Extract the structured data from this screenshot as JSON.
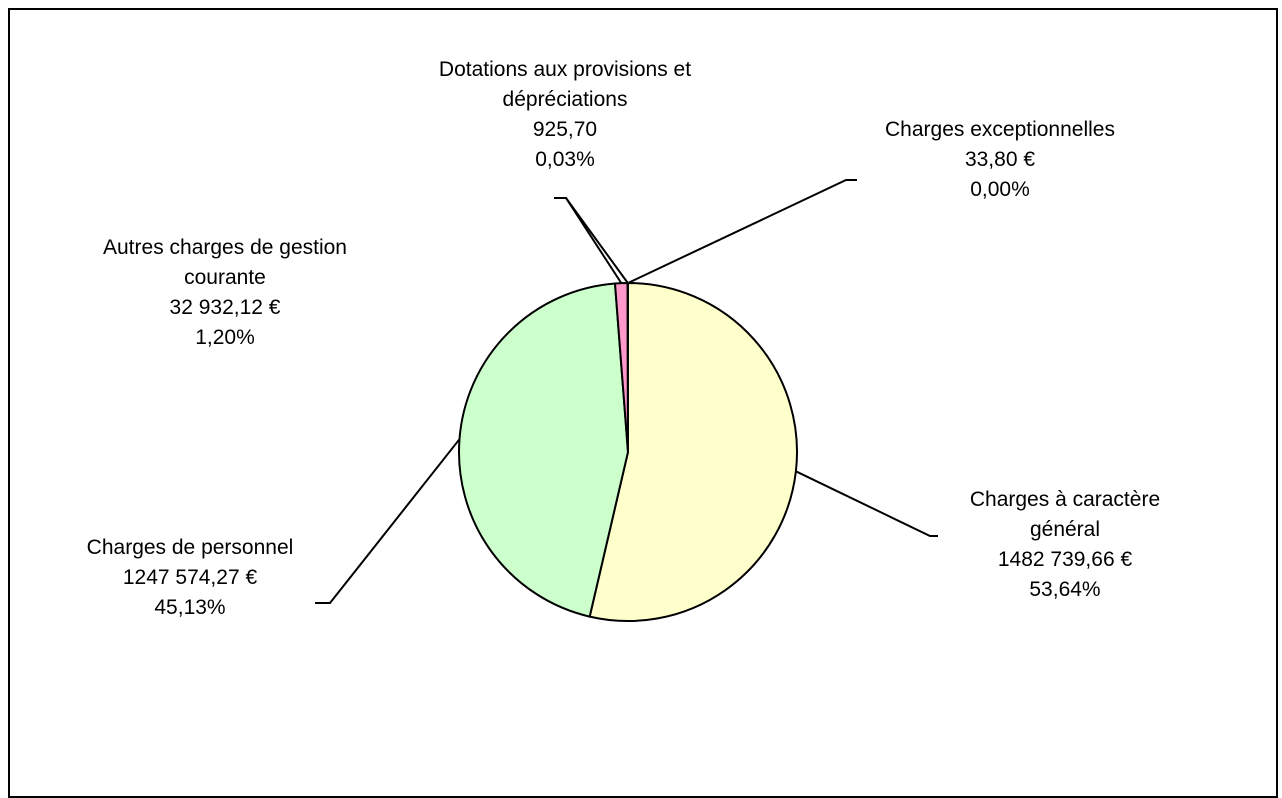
{
  "chart_data": {
    "type": "pie",
    "title": "",
    "start_angle_deg": 0,
    "direction": "clockwise",
    "slices": [
      {
        "name": "Charges à caractère général",
        "name_lines": [
          "Charges à caractère",
          "général"
        ],
        "value_label": "1482 739,66 €",
        "percent_label": "53,64%",
        "value": 1482739.66,
        "percent": 53.64,
        "color": "#ffffcc"
      },
      {
        "name": "Charges de personnel",
        "name_lines": [
          "Charges de personnel"
        ],
        "value_label": "1247 574,27 €",
        "percent_label": "45,13%",
        "value": 1247574.27,
        "percent": 45.13,
        "color": "#ccffcc"
      },
      {
        "name": "Autres charges de gestion courante",
        "name_lines": [
          "Autres charges de gestion",
          "courante"
        ],
        "value_label": "32 932,12 €",
        "percent_label": "1,20%",
        "value": 32932.12,
        "percent": 1.2,
        "color": "#ff99cc"
      },
      {
        "name": "Dotations aux provisions et dépréciations",
        "name_lines": [
          "Dotations aux provisions et",
          "dépréciations"
        ],
        "value_label": "925,70",
        "percent_label": "0,03%",
        "value": 925.7,
        "percent": 0.03,
        "color": "#ccccff"
      },
      {
        "name": "Charges exceptionnelles",
        "name_lines": [
          "Charges exceptionnelles"
        ],
        "value_label": "33,80 €",
        "percent_label": "0,00%",
        "value": 33.8,
        "percent": 0.0,
        "color": "#ffcc99"
      }
    ]
  }
}
